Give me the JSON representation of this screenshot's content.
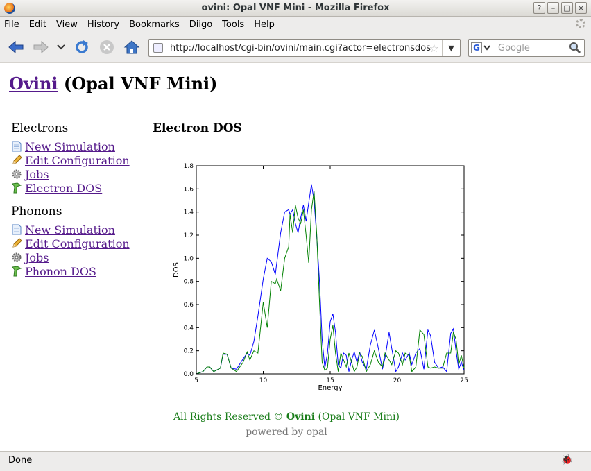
{
  "window": {
    "title": "ovini: Opal VNF Mini - Mozilla Firefox"
  },
  "menu": [
    {
      "key": "F",
      "rest": "ile"
    },
    {
      "key": "E",
      "rest": "dit"
    },
    {
      "key": "V",
      "rest": "iew"
    },
    {
      "key": "",
      "rest": "History",
      "ukey": "s"
    },
    {
      "key": "B",
      "rest": "ookmarks"
    },
    {
      "key": "",
      "rest": "Diigo"
    },
    {
      "key": "T",
      "rest": "ools"
    },
    {
      "key": "H",
      "rest": "elp"
    }
  ],
  "urlbar": {
    "url": "http://localhost/cgi-bin/ovini/main.cgi?actor=electronsdos"
  },
  "search": {
    "placeholder": "Google",
    "engine_letter": "G"
  },
  "page": {
    "title_link": "Ovini",
    "title_rest": "(Opal VNF Mini)",
    "main_heading": "Electron DOS"
  },
  "sidebar": {
    "electrons": {
      "heading": "Electrons",
      "links": [
        "New Simulation",
        "Edit Configuration",
        "Jobs",
        "Electron DOS"
      ]
    },
    "phonons": {
      "heading": "Phonons",
      "links": [
        "New Simulation",
        "Edit Configuration",
        "Jobs",
        "Phonon DOS"
      ]
    }
  },
  "footer": {
    "rights_prefix": "All Rights Reserved ©",
    "rights_name": "Ovini",
    "rights_suffix": "(Opal VNF Mini)",
    "powered": "powered by opal"
  },
  "status": {
    "text": "Done"
  },
  "colors": {
    "link": "#551a8b",
    "footer_green": "#1a7d1a",
    "series_blue": "#0000ff",
    "series_green": "#008000"
  },
  "chart_data": {
    "type": "line",
    "title": "",
    "xlabel": "Energy",
    "ylabel": "DOS",
    "xlim": [
      5,
      25
    ],
    "ylim": [
      0,
      1.8
    ],
    "xticks": [
      5,
      10,
      15,
      20,
      25
    ],
    "yticks": [
      0.0,
      0.2,
      0.4,
      0.6,
      0.8,
      1.0,
      1.2,
      1.4,
      1.6,
      1.8
    ],
    "grid": false,
    "series": [
      {
        "color": "#0000ff",
        "x": [
          5.0,
          5.5,
          5.8,
          6.0,
          6.3,
          6.8,
          7.0,
          7.3,
          7.6,
          8.0,
          8.5,
          8.8,
          9.0,
          9.3,
          9.6,
          10.0,
          10.3,
          10.6,
          10.9,
          11.0,
          11.3,
          11.6,
          11.9,
          12.0,
          12.2,
          12.4,
          12.6,
          12.8,
          13.0,
          13.2,
          13.4,
          13.6,
          13.8,
          14.0,
          14.2,
          14.4,
          14.6,
          14.8,
          15.0,
          15.2,
          15.4,
          15.6,
          15.8,
          16.0,
          16.2,
          16.4,
          16.6,
          16.8,
          17.0,
          17.2,
          17.4,
          17.7,
          18.0,
          18.3,
          18.6,
          18.9,
          19.1,
          19.4,
          19.6,
          19.9,
          20.1,
          20.4,
          20.6,
          20.9,
          21.1,
          21.4,
          21.7,
          22.0,
          22.3,
          22.5,
          22.8,
          23.1,
          23.4,
          23.7,
          24.0,
          24.2,
          24.4,
          24.6,
          24.8,
          25.0
        ],
        "y": [
          0.0,
          0.02,
          0.06,
          0.06,
          0.02,
          0.05,
          0.17,
          0.17,
          0.05,
          0.04,
          0.13,
          0.18,
          0.16,
          0.28,
          0.5,
          0.82,
          1.0,
          0.97,
          0.86,
          0.95,
          1.22,
          1.4,
          1.42,
          1.38,
          1.42,
          1.3,
          1.22,
          1.35,
          1.46,
          1.32,
          1.48,
          1.64,
          1.5,
          1.18,
          0.8,
          0.3,
          0.05,
          0.18,
          0.45,
          0.52,
          0.36,
          0.08,
          0.05,
          0.18,
          0.16,
          0.02,
          0.12,
          0.19,
          0.1,
          0.19,
          0.1,
          0.04,
          0.25,
          0.38,
          0.22,
          0.04,
          0.14,
          0.36,
          0.22,
          0.02,
          0.06,
          0.18,
          0.12,
          0.18,
          0.08,
          0.18,
          0.22,
          0.04,
          0.38,
          0.33,
          0.1,
          0.05,
          0.06,
          0.02,
          0.35,
          0.39,
          0.2,
          0.04,
          0.1,
          0.03
        ]
      },
      {
        "color": "#008000",
        "x": [
          5.0,
          5.5,
          5.8,
          6.0,
          6.3,
          6.8,
          7.0,
          7.3,
          7.6,
          8.0,
          8.5,
          8.8,
          9.0,
          9.3,
          9.6,
          10.0,
          10.3,
          10.6,
          10.9,
          11.0,
          11.3,
          11.6,
          11.9,
          12.0,
          12.2,
          12.4,
          12.6,
          12.8,
          13.0,
          13.2,
          13.4,
          13.6,
          13.8,
          14.0,
          14.2,
          14.4,
          14.6,
          14.8,
          15.0,
          15.2,
          15.4,
          15.6,
          15.8,
          16.0,
          16.2,
          16.4,
          16.6,
          16.8,
          17.0,
          17.2,
          17.4,
          17.7,
          18.0,
          18.3,
          18.6,
          18.9,
          19.1,
          19.4,
          19.6,
          19.9,
          20.1,
          20.4,
          20.6,
          20.9,
          21.1,
          21.4,
          21.7,
          22.0,
          22.3,
          22.5,
          22.8,
          23.1,
          23.4,
          23.7,
          24.0,
          24.2,
          24.4,
          24.6,
          24.8,
          25.0
        ],
        "y": [
          0.0,
          0.02,
          0.06,
          0.06,
          0.02,
          0.05,
          0.18,
          0.17,
          0.05,
          0.02,
          0.1,
          0.19,
          0.12,
          0.2,
          0.18,
          0.62,
          0.4,
          0.8,
          0.78,
          0.82,
          0.72,
          1.0,
          1.1,
          1.38,
          1.22,
          1.46,
          1.35,
          1.3,
          1.42,
          1.2,
          0.96,
          1.42,
          1.58,
          1.2,
          0.62,
          0.1,
          0.03,
          0.05,
          0.3,
          0.42,
          0.18,
          0.02,
          0.18,
          0.12,
          0.06,
          0.18,
          0.1,
          0.02,
          0.06,
          0.18,
          0.15,
          0.02,
          0.08,
          0.2,
          0.1,
          0.06,
          0.18,
          0.12,
          0.08,
          0.2,
          0.18,
          0.08,
          0.18,
          0.16,
          0.02,
          0.06,
          0.38,
          0.34,
          0.06,
          0.05,
          0.06,
          0.05,
          0.05,
          0.18,
          0.18,
          0.36,
          0.3,
          0.08,
          0.16,
          0.05
        ]
      }
    ]
  }
}
